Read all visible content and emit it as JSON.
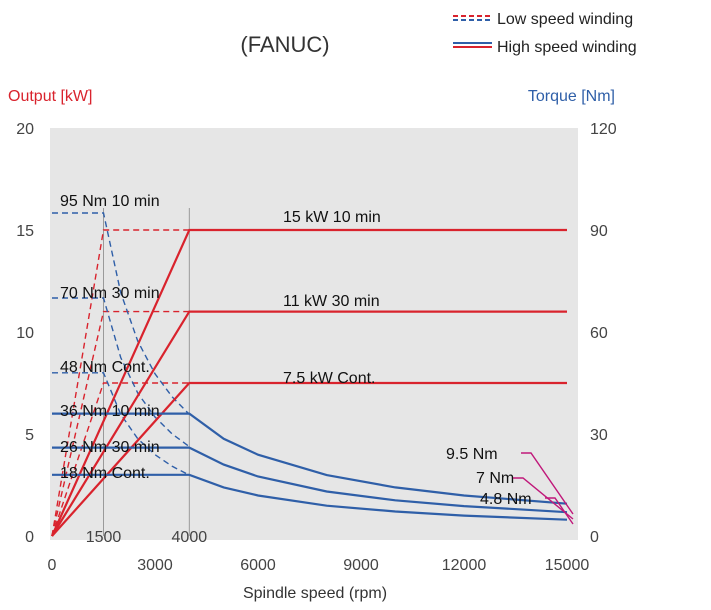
{
  "chart_data": {
    "type": "line",
    "title": "(FANUC)",
    "xlabel": "Spindle speed (rpm)",
    "ylabel_left": "Output [kW]",
    "ylabel_right": "Torque [Nm]",
    "xlim": [
      0,
      15000
    ],
    "ylim_left": [
      0,
      20
    ],
    "ylim_right": [
      0,
      120
    ],
    "x_ticks": [
      "0",
      "3000",
      "6000",
      "9000",
      "12000",
      "15000"
    ],
    "x_ticks_extra": [
      "1500",
      "4000"
    ],
    "y_ticks_left": [
      "0",
      "5",
      "10",
      "15",
      "20"
    ],
    "y_ticks_right": [
      "0",
      "30",
      "60",
      "90",
      "120"
    ],
    "colors": {
      "output": "#d9232d",
      "torque": "#2f5fa8",
      "red_axis": "#d9232d",
      "blue_axis": "#2f5fa8",
      "plot_bg": "#e6e6e6",
      "magenta": "#c0187a"
    },
    "legend": {
      "position": "top-right",
      "items": [
        {
          "label": "Low speed winding",
          "style": "dashed"
        },
        {
          "label": "High speed winding",
          "style": "solid"
        }
      ]
    },
    "output_series": {
      "high_speed": [
        {
          "name": "15 kW 10 min",
          "points": [
            [
              0,
              0
            ],
            [
              4000,
              15
            ],
            [
              15000,
              15
            ]
          ]
        },
        {
          "name": "11 kW 30 min",
          "points": [
            [
              0,
              0
            ],
            [
              4000,
              11
            ],
            [
              15000,
              11
            ]
          ]
        },
        {
          "name": "7.5 kW Cont.",
          "points": [
            [
              0,
              0
            ],
            [
              4000,
              7.5
            ],
            [
              15000,
              7.5
            ]
          ]
        }
      ],
      "low_speed": [
        {
          "points": [
            [
              0,
              0
            ],
            [
              1500,
              15
            ],
            [
              4000,
              15
            ]
          ]
        },
        {
          "points": [
            [
              0,
              0
            ],
            [
              1500,
              11
            ],
            [
              4000,
              11
            ]
          ]
        },
        {
          "points": [
            [
              0,
              0
            ],
            [
              1500,
              7.5
            ],
            [
              4000,
              7.5
            ]
          ]
        }
      ]
    },
    "torque_series": {
      "high_speed": [
        {
          "name": "36 Nm 10 min",
          "points": [
            [
              0,
              36
            ],
            [
              4000,
              36
            ],
            [
              5000,
              28.6
            ],
            [
              6000,
              23.9
            ],
            [
              8000,
              17.9
            ],
            [
              10000,
              14.3
            ],
            [
              12000,
              11.9
            ],
            [
              15000,
              9.5
            ]
          ]
        },
        {
          "name": "26 Nm 30 min",
          "points": [
            [
              0,
              26
            ],
            [
              4000,
              26
            ],
            [
              5000,
              21
            ],
            [
              6000,
              17.5
            ],
            [
              8000,
              13.1
            ],
            [
              10000,
              10.5
            ],
            [
              12000,
              8.8
            ],
            [
              15000,
              7
            ]
          ]
        },
        {
          "name": "18 Nm Cont.",
          "points": [
            [
              0,
              18
            ],
            [
              4000,
              18
            ],
            [
              5000,
              14.3
            ],
            [
              6000,
              11.9
            ],
            [
              8000,
              8.9
            ],
            [
              10000,
              7.2
            ],
            [
              12000,
              6
            ],
            [
              15000,
              4.8
            ]
          ]
        }
      ],
      "low_speed": [
        {
          "name": "95 Nm 10 min",
          "points": [
            [
              0,
              95
            ],
            [
              1500,
              95
            ],
            [
              2000,
              71.6
            ],
            [
              2500,
              57.3
            ],
            [
              3000,
              47.7
            ],
            [
              3500,
              40.9
            ],
            [
              4000,
              35.8
            ]
          ]
        },
        {
          "name": "70 Nm 30 min",
          "points": [
            [
              0,
              70
            ],
            [
              1500,
              70
            ],
            [
              2000,
              52.5
            ],
            [
              2500,
              42
            ],
            [
              3000,
              35
            ],
            [
              3500,
              30
            ],
            [
              4000,
              26.3
            ]
          ]
        },
        {
          "name": "48 Nm Cont.",
          "points": [
            [
              0,
              48
            ],
            [
              1500,
              48
            ],
            [
              2000,
              35.8
            ],
            [
              2500,
              28.6
            ],
            [
              3000,
              23.9
            ],
            [
              3500,
              20.5
            ],
            [
              4000,
              17.9
            ]
          ]
        }
      ]
    },
    "annotations": [
      "95 Nm 10 min",
      "70 Nm 30 min",
      "48 Nm Cont.",
      "36 Nm 10 min",
      "26 Nm 30 min",
      "18 Nm Cont.",
      "15 kW 10 min",
      "11 kW 30 min",
      "7.5 kW Cont.",
      "9.5 Nm",
      "7 Nm",
      "4.8 Nm"
    ]
  }
}
